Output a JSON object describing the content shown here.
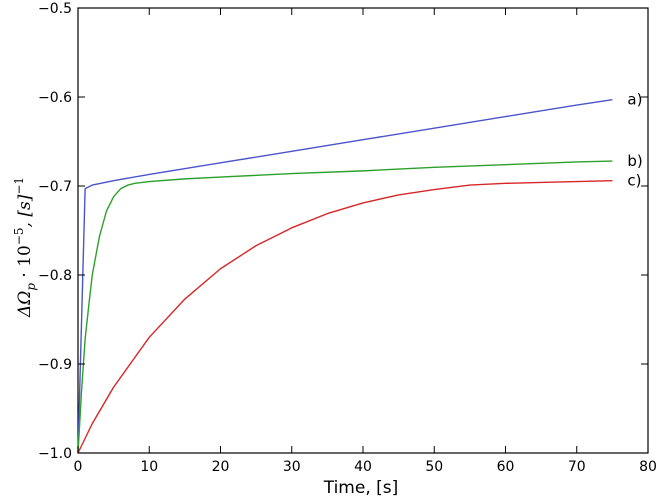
{
  "chart_data": {
    "type": "line",
    "title": "",
    "xlabel": "Time, [s]",
    "ylabel": "ΔΩp · 10⁻⁵, [s]⁻¹",
    "ylabel_parts": {
      "main": "ΔΩ",
      "sub": "p",
      "dot": " · 10",
      "exp": "−5",
      "unit": ", [s]",
      "unit_exp": "−1"
    },
    "xlim": [
      0,
      80
    ],
    "ylim": [
      -1.0,
      -0.5
    ],
    "xticks": [
      0,
      10,
      20,
      30,
      40,
      50,
      60,
      70,
      80
    ],
    "yticks": [
      -1.0,
      -0.9,
      -0.8,
      -0.7,
      -0.6,
      -0.5
    ],
    "xtick_labels": [
      "0",
      "10",
      "20",
      "30",
      "40",
      "50",
      "60",
      "70",
      "80"
    ],
    "ytick_labels": [
      "−1.0",
      "−0.9",
      "−0.8",
      "−0.7",
      "−0.6",
      "−0.5"
    ],
    "grid": false,
    "series": [
      {
        "label": "a)",
        "color": "#4a55c8",
        "x": [
          0,
          1,
          2,
          5,
          10,
          20,
          30,
          40,
          50,
          60,
          70,
          75
        ],
        "y": [
          -1.0,
          -0.703,
          -0.699,
          -0.694,
          -0.687,
          -0.674,
          -0.661,
          -0.648,
          -0.635,
          -0.622,
          -0.609,
          -0.603
        ]
      },
      {
        "label": "b)",
        "color": "#2ca02c",
        "x": [
          0,
          0.5,
          1,
          1.5,
          2,
          3,
          4,
          5,
          6,
          7,
          8,
          10,
          15,
          20,
          30,
          40,
          50,
          60,
          70,
          75
        ],
        "y": [
          -1.0,
          -0.93,
          -0.872,
          -0.835,
          -0.8,
          -0.757,
          -0.728,
          -0.712,
          -0.703,
          -0.699,
          -0.697,
          -0.695,
          -0.692,
          -0.69,
          -0.686,
          -0.683,
          -0.679,
          -0.676,
          -0.673,
          -0.672
        ]
      },
      {
        "label": "c)",
        "color": "#d62728",
        "x": [
          0,
          2,
          5,
          10,
          15,
          20,
          25,
          30,
          35,
          40,
          45,
          50,
          55,
          60,
          65,
          70,
          75
        ],
        "y": [
          -1.0,
          -0.967,
          -0.926,
          -0.87,
          -0.827,
          -0.793,
          -0.767,
          -0.747,
          -0.731,
          -0.719,
          -0.71,
          -0.704,
          -0.699,
          -0.697,
          -0.696,
          -0.695,
          -0.694
        ]
      }
    ]
  }
}
